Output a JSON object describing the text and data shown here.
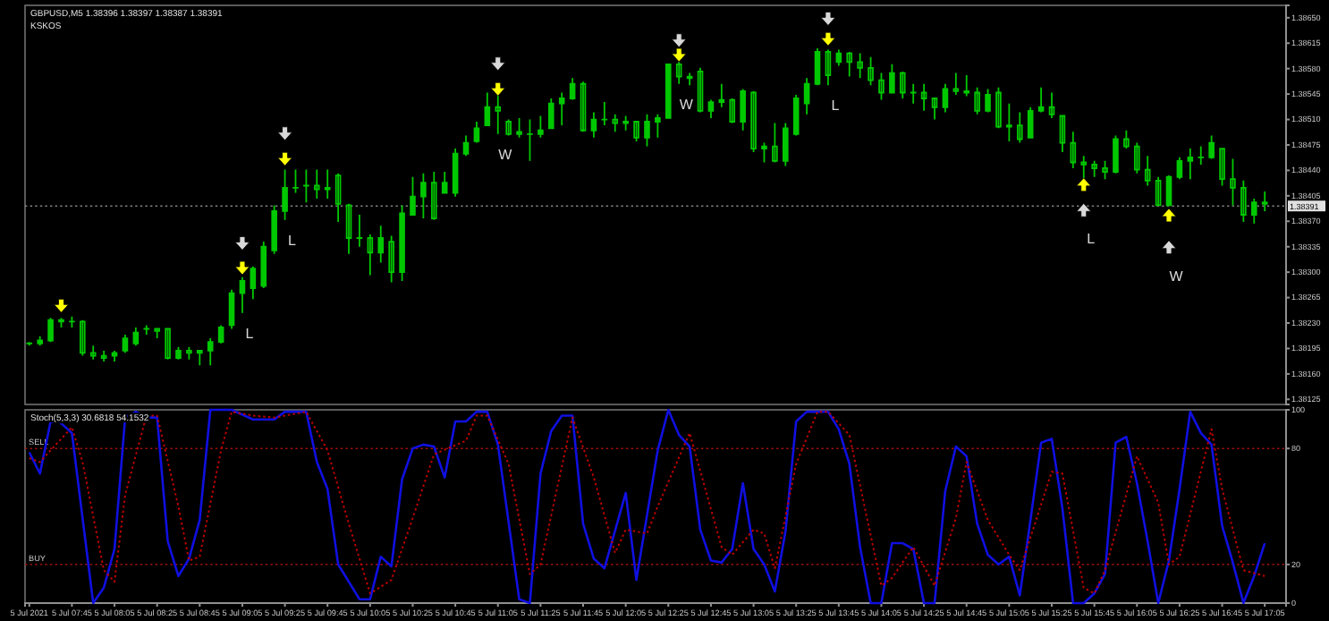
{
  "chart_data": [
    {
      "type": "candlestick",
      "title": "GBPUSD,M5  1.38396 1.38397 1.38387 1.38391",
      "subtitle": "KSKOS",
      "color": "#00c800",
      "x": [
        "2021-07-05T07:25",
        "2021-07-05T07:30",
        "2021-07-05T07:35",
        "2021-07-05T07:40",
        "2021-07-05T07:45",
        "2021-07-05T07:50",
        "2021-07-05T07:55",
        "2021-07-05T08:00",
        "2021-07-05T08:05",
        "2021-07-05T08:10",
        "2021-07-05T08:15",
        "2021-07-05T08:20",
        "2021-07-05T08:25",
        "2021-07-05T08:30",
        "2021-07-05T08:35",
        "2021-07-05T08:40",
        "2021-07-05T08:45",
        "2021-07-05T08:50",
        "2021-07-05T08:55",
        "2021-07-05T09:00",
        "2021-07-05T09:05",
        "2021-07-05T09:10",
        "2021-07-05T09:15",
        "2021-07-05T09:20",
        "2021-07-05T09:25",
        "2021-07-05T09:30",
        "2021-07-05T09:35",
        "2021-07-05T09:40",
        "2021-07-05T09:45",
        "2021-07-05T09:50",
        "2021-07-05T09:55",
        "2021-07-05T10:00",
        "2021-07-05T10:05",
        "2021-07-05T10:10",
        "2021-07-05T10:15",
        "2021-07-05T10:20",
        "2021-07-05T10:25",
        "2021-07-05T10:30",
        "2021-07-05T10:35",
        "2021-07-05T10:40",
        "2021-07-05T10:45",
        "2021-07-05T10:50",
        "2021-07-05T10:55",
        "2021-07-05T11:00",
        "2021-07-05T11:05",
        "2021-07-05T11:10",
        "2021-07-05T11:15",
        "2021-07-05T11:20",
        "2021-07-05T11:25",
        "2021-07-05T11:30",
        "2021-07-05T11:35",
        "2021-07-05T11:40",
        "2021-07-05T11:45",
        "2021-07-05T11:50",
        "2021-07-05T11:55",
        "2021-07-05T12:00",
        "2021-07-05T12:05",
        "2021-07-05T12:10",
        "2021-07-05T12:15",
        "2021-07-05T12:20",
        "2021-07-05T12:25",
        "2021-07-05T12:30",
        "2021-07-05T12:35",
        "2021-07-05T12:40",
        "2021-07-05T12:45",
        "2021-07-05T12:50",
        "2021-07-05T12:55",
        "2021-07-05T13:00",
        "2021-07-05T13:05",
        "2021-07-05T13:10",
        "2021-07-05T13:15",
        "2021-07-05T13:20",
        "2021-07-05T13:25",
        "2021-07-05T13:30",
        "2021-07-05T13:35",
        "2021-07-05T13:40",
        "2021-07-05T13:45",
        "2021-07-05T13:50",
        "2021-07-05T13:55",
        "2021-07-05T14:00",
        "2021-07-05T14:05",
        "2021-07-05T14:10",
        "2021-07-05T14:15",
        "2021-07-05T14:20",
        "2021-07-05T14:25",
        "2021-07-05T14:30",
        "2021-07-05T14:35",
        "2021-07-05T14:40",
        "2021-07-05T14:45",
        "2021-07-05T14:50",
        "2021-07-05T14:55",
        "2021-07-05T15:00",
        "2021-07-05T15:05",
        "2021-07-05T15:10",
        "2021-07-05T15:15",
        "2021-07-05T15:20",
        "2021-07-05T15:25",
        "2021-07-05T15:30",
        "2021-07-05T15:35",
        "2021-07-05T15:40",
        "2021-07-05T15:45",
        "2021-07-05T15:50",
        "2021-07-05T15:55",
        "2021-07-05T16:00",
        "2021-07-05T16:05",
        "2021-07-05T16:10",
        "2021-07-05T16:15",
        "2021-07-05T16:20",
        "2021-07-05T16:25",
        "2021-07-05T16:30",
        "2021-07-05T16:35",
        "2021-07-05T16:40",
        "2021-07-05T16:45",
        "2021-07-05T16:50",
        "2021-07-05T16:55",
        "2021-07-05T17:00",
        "2021-07-05T17:05"
      ],
      "ohlc": [
        [
          1.38202,
          1.38204,
          1.38199,
          1.38202
        ],
        [
          1.38202,
          1.38212,
          1.38199,
          1.38206
        ],
        [
          1.38206,
          1.38237,
          1.38204,
          1.38234
        ],
        [
          1.38234,
          1.38237,
          1.38224,
          1.38232
        ],
        [
          1.38232,
          1.38239,
          1.38224,
          1.38232
        ],
        [
          1.38232,
          1.38234,
          1.38185,
          1.38189
        ],
        [
          1.38189,
          1.38199,
          1.3818,
          1.38185
        ],
        [
          1.38185,
          1.38192,
          1.38177,
          1.38182
        ],
        [
          1.38185,
          1.38192,
          1.38177,
          1.38189
        ],
        [
          1.38192,
          1.38214,
          1.38189,
          1.38209
        ],
        [
          1.38202,
          1.38224,
          1.38199,
          1.38217
        ],
        [
          1.38222,
          1.38227,
          1.38214,
          1.38222
        ],
        [
          1.38222,
          1.38222,
          1.38209,
          1.38219
        ],
        [
          1.38222,
          1.38222,
          1.3818,
          1.38182
        ],
        [
          1.38182,
          1.38197,
          1.3818,
          1.38192
        ],
        [
          1.38192,
          1.38197,
          1.3818,
          1.38189
        ],
        [
          1.38189,
          1.38192,
          1.38172,
          1.38192
        ],
        [
          1.38192,
          1.38209,
          1.38172,
          1.38204
        ],
        [
          1.38204,
          1.38227,
          1.38202,
          1.38224
        ],
        [
          1.38227,
          1.38276,
          1.38222,
          1.38271
        ],
        [
          1.38271,
          1.38293,
          1.38244,
          1.38288
        ],
        [
          1.38278,
          1.38308,
          1.38263,
          1.38305
        ],
        [
          1.38281,
          1.38342,
          1.38278,
          1.38335
        ],
        [
          1.3833,
          1.38392,
          1.38325,
          1.38384
        ],
        [
          1.38384,
          1.38441,
          1.38372,
          1.38416
        ],
        [
          1.38416,
          1.38441,
          1.38409,
          1.38416
        ],
        [
          1.38419,
          1.38441,
          1.38396,
          1.38419
        ],
        [
          1.38419,
          1.38441,
          1.38401,
          1.38414
        ],
        [
          1.38414,
          1.38441,
          1.38401,
          1.38416
        ],
        [
          1.38433,
          1.38436,
          1.38369,
          1.38394
        ],
        [
          1.38392,
          1.38394,
          1.38325,
          1.38347
        ],
        [
          1.38347,
          1.38379,
          1.38335,
          1.38347
        ],
        [
          1.38347,
          1.38352,
          1.38296,
          1.38327
        ],
        [
          1.38327,
          1.38364,
          1.38313,
          1.38347
        ],
        [
          1.38342,
          1.3835,
          1.38286,
          1.383
        ],
        [
          1.383,
          1.38392,
          1.38288,
          1.38381
        ],
        [
          1.38379,
          1.38431,
          1.38379,
          1.38404
        ],
        [
          1.38404,
          1.38436,
          1.38374,
          1.38423
        ],
        [
          1.38423,
          1.38438,
          1.38372,
          1.38374
        ],
        [
          1.38409,
          1.38438,
          1.38409,
          1.38423
        ],
        [
          1.38409,
          1.3847,
          1.38404,
          1.38463
        ],
        [
          1.38463,
          1.38488,
          1.3846,
          1.38478
        ],
        [
          1.3848,
          1.38507,
          1.38478,
          1.38498
        ],
        [
          1.38502,
          1.38547,
          1.38502,
          1.38527
        ],
        [
          1.38527,
          1.38544,
          1.3849,
          1.38522
        ],
        [
          1.38507,
          1.3851,
          1.38488,
          1.3849
        ],
        [
          1.3849,
          1.38512,
          1.38485,
          1.38493
        ],
        [
          1.3849,
          1.3851,
          1.38453,
          1.3849
        ],
        [
          1.3849,
          1.38515,
          1.38485,
          1.38495
        ],
        [
          1.38498,
          1.38539,
          1.38498,
          1.38532
        ],
        [
          1.38532,
          1.38547,
          1.38502,
          1.38539
        ],
        [
          1.38539,
          1.38567,
          1.38537,
          1.38559
        ],
        [
          1.38559,
          1.38562,
          1.38493,
          1.38495
        ],
        [
          1.38495,
          1.3852,
          1.38485,
          1.3851
        ],
        [
          1.3851,
          1.38534,
          1.38502,
          1.3851
        ],
        [
          1.3851,
          1.38517,
          1.38493,
          1.38505
        ],
        [
          1.38505,
          1.38515,
          1.38495,
          1.38507
        ],
        [
          1.38507,
          1.38507,
          1.3848,
          1.38485
        ],
        [
          1.38485,
          1.38517,
          1.38473,
          1.38507
        ],
        [
          1.38507,
          1.38517,
          1.38485,
          1.38512
        ],
        [
          1.38512,
          1.38586,
          1.38512,
          1.38586
        ],
        [
          1.38586,
          1.38589,
          1.38559,
          1.38569
        ],
        [
          1.38569,
          1.38574,
          1.38557,
          1.38567
        ],
        [
          1.38576,
          1.38581,
          1.3852,
          1.38522
        ],
        [
          1.38522,
          1.38537,
          1.38512,
          1.38534
        ],
        [
          1.38534,
          1.38559,
          1.38527,
          1.38537
        ],
        [
          1.38537,
          1.38539,
          1.38505,
          1.38507
        ],
        [
          1.38507,
          1.38552,
          1.38495,
          1.38549
        ],
        [
          1.38547,
          1.38549,
          1.38465,
          1.3847
        ],
        [
          1.3847,
          1.38478,
          1.38451,
          1.38473
        ],
        [
          1.38473,
          1.38505,
          1.38451,
          1.38453
        ],
        [
          1.38453,
          1.38505,
          1.38446,
          1.38498
        ],
        [
          1.3849,
          1.38544,
          1.38488,
          1.38539
        ],
        [
          1.38532,
          1.38567,
          1.38517,
          1.38559
        ],
        [
          1.38559,
          1.38608,
          1.38557,
          1.38603
        ],
        [
          1.38603,
          1.38606,
          1.38557,
          1.38571
        ],
        [
          1.38589,
          1.38606,
          1.38584,
          1.38601
        ],
        [
          1.38601,
          1.38603,
          1.38569,
          1.38589
        ],
        [
          1.38589,
          1.38601,
          1.38567,
          1.38581
        ],
        [
          1.38581,
          1.38596,
          1.38557,
          1.38564
        ],
        [
          1.38564,
          1.38574,
          1.38537,
          1.38547
        ],
        [
          1.38547,
          1.38586,
          1.38547,
          1.38574
        ],
        [
          1.38574,
          1.38576,
          1.38539,
          1.38547
        ],
        [
          1.38547,
          1.38559,
          1.38532,
          1.38547
        ],
        [
          1.38547,
          1.38559,
          1.38522,
          1.38539
        ],
        [
          1.38539,
          1.38539,
          1.3851,
          1.38527
        ],
        [
          1.38527,
          1.38559,
          1.3852,
          1.38552
        ],
        [
          1.38552,
          1.38574,
          1.38544,
          1.38549
        ],
        [
          1.38549,
          1.38571,
          1.38542,
          1.38547
        ],
        [
          1.38547,
          1.38554,
          1.38517,
          1.38522
        ],
        [
          1.38522,
          1.38552,
          1.3852,
          1.38544
        ],
        [
          1.38547,
          1.38554,
          1.38498,
          1.385
        ],
        [
          1.385,
          1.38532,
          1.3848,
          1.38502
        ],
        [
          1.38502,
          1.3852,
          1.38478,
          1.38483
        ],
        [
          1.38485,
          1.38527,
          1.38485,
          1.38522
        ],
        [
          1.38522,
          1.38554,
          1.3852,
          1.38527
        ],
        [
          1.38527,
          1.38547,
          1.38512,
          1.38517
        ],
        [
          1.38515,
          1.38515,
          1.38465,
          1.38478
        ],
        [
          1.38478,
          1.38493,
          1.38443,
          1.38451
        ],
        [
          1.38451,
          1.3846,
          1.38428,
          1.38448
        ],
        [
          1.38448,
          1.38453,
          1.38431,
          1.38443
        ],
        [
          1.38443,
          1.38453,
          1.38428,
          1.38438
        ],
        [
          1.38438,
          1.38488,
          1.38436,
          1.38483
        ],
        [
          1.38483,
          1.38495,
          1.3847,
          1.38473
        ],
        [
          1.38473,
          1.38478,
          1.38436,
          1.38441
        ],
        [
          1.38441,
          1.3846,
          1.38419,
          1.38426
        ],
        [
          1.38426,
          1.38431,
          1.38392,
          1.38392
        ],
        [
          1.38392,
          1.38433,
          1.38392,
          1.38431
        ],
        [
          1.38431,
          1.38458,
          1.38428,
          1.38453
        ],
        [
          1.38453,
          1.3847,
          1.38428,
          1.38458
        ],
        [
          1.38458,
          1.38473,
          1.38448,
          1.38458
        ],
        [
          1.38458,
          1.38488,
          1.38456,
          1.38478
        ],
        [
          1.3847,
          1.3847,
          1.38419,
          1.38428
        ],
        [
          1.38428,
          1.38456,
          1.38392,
          1.38416
        ],
        [
          1.38416,
          1.38426,
          1.38369,
          1.38379
        ],
        [
          1.38379,
          1.38401,
          1.38367,
          1.38396
        ],
        [
          1.38396,
          1.38411,
          1.38384,
          1.38394
        ]
      ],
      "series": [
        {
          "type": "scatter",
          "color": "#ffff00",
          "marker": "triangle",
          "x": [
            "2021-07-05T07:40",
            "2021-07-05T09:05",
            "2021-07-05T09:25",
            "2021-07-05T11:05",
            "2021-07-05T12:30",
            "2021-07-05T13:40",
            "2021-07-05T15:40",
            "2021-07-05T16:20"
          ],
          "values": [
            1.38253,
            1.38305,
            1.38455,
            1.38551,
            1.38598,
            1.3862,
            1.38421,
            1.38379
          ]
        },
        {
          "type": "scatter",
          "color": "#d8d8d8",
          "marker": "triangle",
          "x": [
            "2021-07-05T09:05",
            "2021-07-05T09:25",
            "2021-07-05T11:05",
            "2021-07-05T12:30",
            "2021-07-05T13:40",
            "2021-07-05T15:40",
            "2021-07-05T16:20"
          ],
          "values": [
            1.38339,
            1.3849,
            1.38586,
            1.38618,
            1.38648,
            1.38386,
            1.38335
          ]
        }
      ],
      "annotations": [
        "L",
        "L",
        "W",
        "W",
        "L",
        "L",
        "W"
      ],
      "ref_lines": [
        {
          "axis": "y",
          "value": 1.38391,
          "label": "1.38391",
          "color": "#808080",
          "line_style": "dotted"
        }
      ],
      "xlim": [
        "2021-07-05T07:23",
        "2021-07-05T17:15"
      ],
      "ylim": [
        1.38118,
        1.38667
      ],
      "yticks": [
        1.38125,
        {
          "value": 1.3816,
          "label": "1.38160"
        },
        1.38195,
        {
          "value": 1.3823,
          "label": "1.38230"
        },
        1.38265,
        {
          "value": 1.383,
          "label": "1.38300"
        },
        1.38335,
        {
          "value": 1.3837,
          "label": "1.38370"
        },
        1.38405,
        {
          "value": 1.3844,
          "label": "1.38440"
        },
        1.38475,
        {
          "value": 1.3851,
          "label": "1.38510"
        },
        1.38545,
        {
          "value": 1.3858,
          "label": "1.38580"
        },
        1.38615,
        {
          "value": 1.3865,
          "label": "1.38650"
        }
      ],
      "tick_labels": "y"
    },
    {
      "type": "line",
      "title": "Stoch(5,3,3) 30.6818 54.1532",
      "series": [
        {
          "color": "#1010e0",
          "line_style": "solid",
          "x": [
            "2021-07-05T07:25",
            "2021-07-05T07:30",
            "2021-07-05T07:35",
            "2021-07-05T07:40",
            "2021-07-05T07:45",
            "2021-07-05T07:55",
            "2021-07-05T08:00",
            "2021-07-05T08:05",
            "2021-07-05T08:10",
            "2021-07-05T08:15",
            "2021-07-05T08:20",
            "2021-07-05T08:25",
            "2021-07-05T08:30",
            "2021-07-05T08:35",
            "2021-07-05T08:40",
            "2021-07-05T08:45",
            "2021-07-05T08:50",
            "2021-07-05T09:00",
            "2021-07-05T09:10",
            "2021-07-05T09:20",
            "2021-07-05T09:25",
            "2021-07-05T09:35",
            "2021-07-05T09:40",
            "2021-07-05T09:45",
            "2021-07-05T09:50",
            "2021-07-05T10:00",
            "2021-07-05T10:05",
            "2021-07-05T10:10",
            "2021-07-05T10:15",
            "2021-07-05T10:20",
            "2021-07-05T10:25",
            "2021-07-05T10:30",
            "2021-07-05T10:35",
            "2021-07-05T10:40",
            "2021-07-05T10:45",
            "2021-07-05T10:50",
            "2021-07-05T10:55",
            "2021-07-05T11:00",
            "2021-07-05T11:05",
            "2021-07-05T11:15",
            "2021-07-05T11:20",
            "2021-07-05T11:25",
            "2021-07-05T11:30",
            "2021-07-05T11:35",
            "2021-07-05T11:40",
            "2021-07-05T11:45",
            "2021-07-05T11:50",
            "2021-07-05T11:55",
            "2021-07-05T12:05",
            "2021-07-05T12:10",
            "2021-07-05T12:20",
            "2021-07-05T12:25",
            "2021-07-05T12:30",
            "2021-07-05T12:35",
            "2021-07-05T12:40",
            "2021-07-05T12:45",
            "2021-07-05T12:50",
            "2021-07-05T12:55",
            "2021-07-05T13:00",
            "2021-07-05T13:05",
            "2021-07-05T13:10",
            "2021-07-05T13:15",
            "2021-07-05T13:20",
            "2021-07-05T13:25",
            "2021-07-05T13:30",
            "2021-07-05T13:40",
            "2021-07-05T13:45",
            "2021-07-05T13:50",
            "2021-07-05T13:55",
            "2021-07-05T14:00",
            "2021-07-05T14:05",
            "2021-07-05T14:10",
            "2021-07-05T14:15",
            "2021-07-05T14:20",
            "2021-07-05T14:25",
            "2021-07-05T14:30",
            "2021-07-05T14:35",
            "2021-07-05T14:40",
            "2021-07-05T14:45",
            "2021-07-05T14:50",
            "2021-07-05T14:55",
            "2021-07-05T15:00",
            "2021-07-05T15:05",
            "2021-07-05T15:10",
            "2021-07-05T15:15",
            "2021-07-05T15:20",
            "2021-07-05T15:25",
            "2021-07-05T15:30",
            "2021-07-05T15:35",
            "2021-07-05T15:40",
            "2021-07-05T15:45",
            "2021-07-05T15:50",
            "2021-07-05T15:55",
            "2021-07-05T16:00",
            "2021-07-05T16:05",
            "2021-07-05T16:10",
            "2021-07-05T16:15",
            "2021-07-05T16:20",
            "2021-07-05T16:25",
            "2021-07-05T16:30",
            "2021-07-05T16:35",
            "2021-07-05T16:40",
            "2021-07-05T16:45",
            "2021-07-05T16:50",
            "2021-07-05T16:55",
            "2021-07-05T17:00",
            "2021-07-05T17:05"
          ],
          "values": [
            78,
            67,
            94,
            93,
            88,
            0,
            8,
            28,
            96,
            99,
            96,
            96,
            32,
            14,
            23,
            43,
            100,
            100,
            95,
            95,
            99,
            99,
            73,
            59,
            20,
            2,
            2,
            24,
            19,
            64,
            80,
            82,
            81,
            65,
            94,
            94,
            99,
            99,
            82,
            2,
            0,
            67,
            89,
            97,
            97,
            41,
            23,
            18,
            57,
            12,
            79,
            100,
            87,
            81,
            38,
            22,
            21,
            28,
            62,
            28,
            20,
            6,
            37,
            94,
            99,
            99,
            90,
            72,
            29,
            0,
            0,
            31,
            31,
            28,
            0,
            0,
            58,
            81,
            76,
            41,
            25,
            20,
            24,
            4,
            43,
            83,
            85,
            49,
            0,
            0,
            5,
            15,
            83,
            86,
            62,
            32,
            0,
            22,
            59,
            99,
            88,
            82,
            40,
            21,
            0,
            14,
            31
          ]
        },
        {
          "color": "#c00000",
          "line_style": "dotted",
          "x": [
            "2021-07-05T07:25",
            "2021-07-05T07:30",
            "2021-07-05T07:45",
            "2021-07-05T07:50",
            "2021-07-05T08:00",
            "2021-07-05T08:05",
            "2021-07-05T08:10",
            "2021-07-05T08:20",
            "2021-07-05T08:25",
            "2021-07-05T08:35",
            "2021-07-05T08:40",
            "2021-07-05T08:45",
            "2021-07-05T08:55",
            "2021-07-05T09:00",
            "2021-07-05T09:10",
            "2021-07-05T09:20",
            "2021-07-05T09:35",
            "2021-07-05T09:45",
            "2021-07-05T09:55",
            "2021-07-05T10:05",
            "2021-07-05T10:15",
            "2021-07-05T10:25",
            "2021-07-05T10:35",
            "2021-07-05T10:50",
            "2021-07-05T10:55",
            "2021-07-05T11:00",
            "2021-07-05T11:10",
            "2021-07-05T11:20",
            "2021-07-05T11:25",
            "2021-07-05T11:40",
            "2021-07-05T11:50",
            "2021-07-05T12:00",
            "2021-07-05T12:05",
            "2021-07-05T12:15",
            "2021-07-05T12:20",
            "2021-07-05T12:35",
            "2021-07-05T12:50",
            "2021-07-05T12:55",
            "2021-07-05T13:05",
            "2021-07-05T13:10",
            "2021-07-05T13:15",
            "2021-07-05T13:25",
            "2021-07-05T13:35",
            "2021-07-05T13:40",
            "2021-07-05T13:50",
            "2021-07-05T14:05",
            "2021-07-05T14:10",
            "2021-07-05T14:20",
            "2021-07-05T14:30",
            "2021-07-05T14:40",
            "2021-07-05T14:45",
            "2021-07-05T14:55",
            "2021-07-05T15:05",
            "2021-07-05T15:10",
            "2021-07-05T15:25",
            "2021-07-05T15:30",
            "2021-07-05T15:40",
            "2021-07-05T15:45",
            "2021-07-05T15:50",
            "2021-07-05T16:05",
            "2021-07-05T16:15",
            "2021-07-05T16:20",
            "2021-07-05T16:25",
            "2021-07-05T16:40",
            "2021-07-05T16:45",
            "2021-07-05T16:55",
            "2021-07-05T17:05"
          ],
          "values": [
            75,
            73,
            91,
            73,
            17,
            11,
            56,
            97,
            97,
            50,
            22,
            24,
            79,
            99,
            97,
            96,
            99,
            79,
            41,
            5,
            12,
            44,
            77,
            84,
            97,
            97,
            72,
            15,
            20,
            96,
            65,
            26,
            38,
            36,
            50,
            88,
            29,
            25,
            38,
            36,
            18,
            72,
            99,
            99,
            87,
            9,
            13,
            29,
            9,
            44,
            73,
            43,
            25,
            17,
            68,
            67,
            8,
            5,
            17,
            76,
            52,
            20,
            24,
            90,
            59,
            17,
            14
          ]
        }
      ],
      "ref_lines": [
        {
          "axis": "y",
          "value": 80,
          "label": "SELL",
          "color": "#a01010",
          "line_style": "dotted"
        },
        {
          "axis": "y",
          "value": 20,
          "label": "BUY",
          "color": "#a01010",
          "line_style": "dotted"
        }
      ],
      "xlim": [
        "2021-07-05T07:23",
        "2021-07-05T17:15"
      ],
      "ylim": [
        0,
        100
      ],
      "yticks": [
        0,
        20,
        80,
        100
      ],
      "xticks": [
        {
          "value": "2021-07-05T07:25",
          "label": "5 Jul 2021"
        },
        {
          "value": "2021-07-05T07:45",
          "label": "5 Jul 07:45"
        },
        {
          "value": "2021-07-05T08:05",
          "label": "5 Jul 08:05"
        },
        {
          "value": "2021-07-05T08:25",
          "label": "5 Jul 08:25"
        },
        {
          "value": "2021-07-05T08:45",
          "label": "5 Jul 08:45"
        },
        {
          "value": "2021-07-05T09:05",
          "label": "5 Jul 09:05"
        },
        {
          "value": "2021-07-05T09:25",
          "label": "5 Jul 09:25"
        },
        {
          "value": "2021-07-05T09:45",
          "label": "5 Jul 09:45"
        },
        {
          "value": "2021-07-05T10:05",
          "label": "5 Jul 10:05"
        },
        {
          "value": "2021-07-05T10:25",
          "label": "5 Jul 10:25"
        },
        {
          "value": "2021-07-05T10:45",
          "label": "5 Jul 10:45"
        },
        {
          "value": "2021-07-05T11:05",
          "label": "5 Jul 11:05"
        },
        {
          "value": "2021-07-05T11:25",
          "label": "5 Jul 11:25"
        },
        {
          "value": "2021-07-05T11:45",
          "label": "5 Jul 11:45"
        },
        {
          "value": "2021-07-05T12:05",
          "label": "5 Jul 12:05"
        },
        {
          "value": "2021-07-05T12:25",
          "label": "5 Jul 12:25"
        },
        {
          "value": "2021-07-05T12:45",
          "label": "5 Jul 12:45"
        },
        {
          "value": "2021-07-05T13:05",
          "label": "5 Jul 13:05"
        },
        {
          "value": "2021-07-05T13:25",
          "label": "5 Jul 13:25"
        },
        {
          "value": "2021-07-05T13:45",
          "label": "5 Jul 13:45"
        },
        {
          "value": "2021-07-05T14:05",
          "label": "5 Jul 14:05"
        },
        {
          "value": "2021-07-05T14:25",
          "label": "5 Jul 14:25"
        },
        {
          "value": "2021-07-05T14:45",
          "label": "5 Jul 14:45"
        },
        {
          "value": "2021-07-05T15:05",
          "label": "5 Jul 15:05"
        },
        {
          "value": "2021-07-05T15:25",
          "label": "5 Jul 15:25"
        },
        {
          "value": "2021-07-05T15:45",
          "label": "5 Jul 15:45"
        },
        {
          "value": "2021-07-05T16:05",
          "label": "5 Jul 16:05"
        },
        {
          "value": "2021-07-05T16:25",
          "label": "5 Jul 16:25"
        },
        {
          "value": "2021-07-05T16:45",
          "label": "5 Jul 16:45"
        },
        {
          "value": "2021-07-05T17:05",
          "label": "5 Jul 17:05"
        }
      ]
    }
  ]
}
